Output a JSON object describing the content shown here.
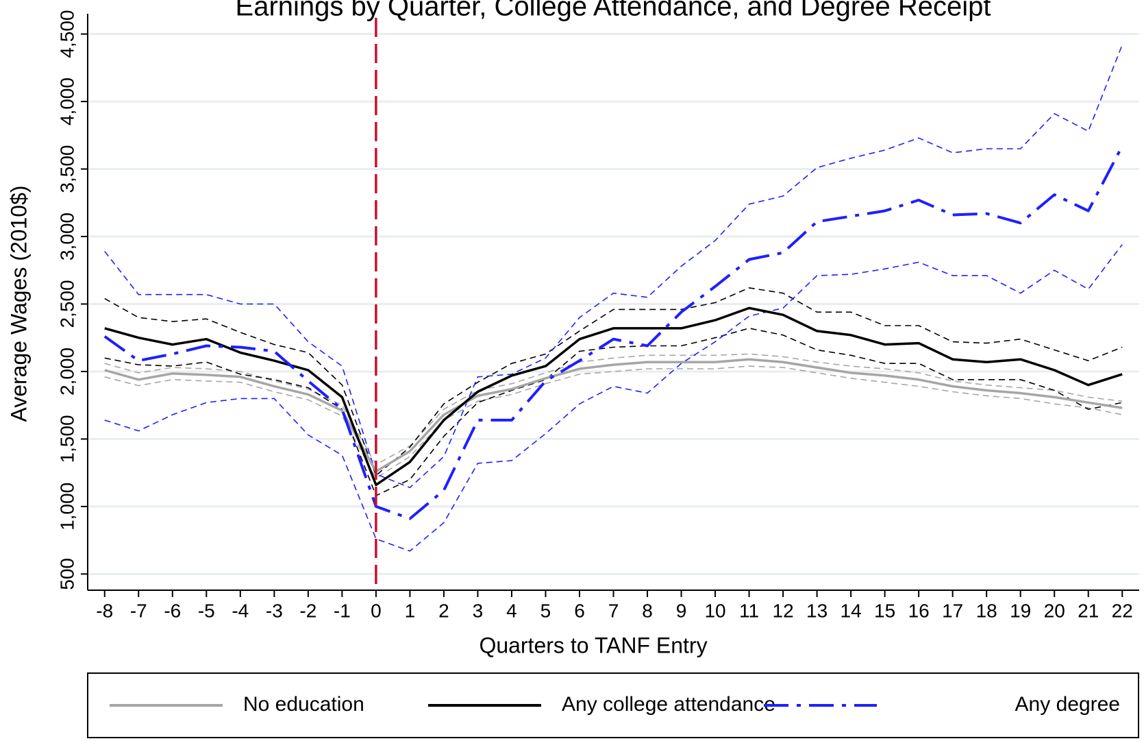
{
  "chart_data": {
    "type": "line",
    "title": "Earnings by Quarter, College Attendance, and Degree Receipt",
    "x_label": "Quarters to TANF Entry",
    "y_label": "Average Wages (2010$)",
    "x": [
      -8,
      -7,
      -6,
      -5,
      -4,
      -3,
      -2,
      -1,
      0,
      1,
      2,
      3,
      4,
      5,
      6,
      7,
      8,
      9,
      10,
      11,
      12,
      13,
      14,
      15,
      16,
      17,
      18,
      19,
      20,
      21,
      22
    ],
    "xlim": [
      -8.5,
      22.5
    ],
    "xticks": [
      -8,
      -7,
      -6,
      -5,
      -4,
      -3,
      -2,
      -1,
      0,
      1,
      2,
      3,
      4,
      5,
      6,
      7,
      8,
      9,
      10,
      11,
      12,
      13,
      14,
      15,
      16,
      17,
      18,
      19,
      20,
      21,
      22
    ],
    "ylim": [
      380,
      4620
    ],
    "yticks": [
      500,
      {
        "value": 1000,
        "label": "1,000"
      },
      {
        "value": 1500,
        "label": "1,500"
      },
      {
        "value": 2000,
        "label": "2,000"
      },
      {
        "value": 2500,
        "label": "2,500"
      },
      {
        "value": 3000,
        "label": "3,000"
      },
      {
        "value": 3500,
        "label": "3,500"
      },
      {
        "value": 4000,
        "label": "4,000"
      },
      {
        "value": 4500,
        "label": "4,500"
      }
    ],
    "grid": true,
    "vline": {
      "x": 0,
      "color": "#c8102e"
    },
    "legend": "bottom",
    "series": [
      {
        "name": "No education",
        "color": "#a6a6a6",
        "line_style": "solid",
        "values": [
          2010,
          1940,
          1985,
          1975,
          1960,
          1890,
          1830,
          1710,
          1260,
          1410,
          1680,
          1820,
          1870,
          1950,
          2020,
          2050,
          2070,
          2070,
          2070,
          2090,
          2070,
          2030,
          1990,
          1970,
          1940,
          1890,
          1860,
          1840,
          1810,
          1770,
          1730
        ],
        "ci_upper": [
          2060,
          1990,
          2030,
          2020,
          2000,
          1930,
          1870,
          1750,
          1310,
          1450,
          1720,
          1860,
          1910,
          1990,
          2070,
          2100,
          2120,
          2120,
          2120,
          2130,
          2110,
          2070,
          2040,
          2020,
          1990,
          1930,
          1900,
          1880,
          1860,
          1810,
          1780
        ],
        "ci_lower": [
          1960,
          1895,
          1940,
          1930,
          1920,
          1850,
          1790,
          1670,
          1210,
          1370,
          1640,
          1780,
          1830,
          1910,
          1980,
          2000,
          2020,
          2020,
          2020,
          2040,
          2030,
          1990,
          1950,
          1920,
          1890,
          1850,
          1820,
          1800,
          1760,
          1730,
          1680
        ]
      },
      {
        "name": "Any college attendance",
        "color": "#000000",
        "line_style": "solid",
        "values": [
          2320,
          2250,
          2200,
          2240,
          2140,
          2080,
          2010,
          1810,
          1160,
          1330,
          1640,
          1850,
          1970,
          2040,
          2240,
          2320,
          2320,
          2320,
          2380,
          2470,
          2420,
          2300,
          2270,
          2200,
          2210,
          2090,
          2070,
          2090,
          2010,
          1900,
          1980
        ],
        "ci_upper": [
          2540,
          2400,
          2370,
          2390,
          2290,
          2200,
          2140,
          1900,
          1230,
          1440,
          1760,
          1920,
          2060,
          2130,
          2300,
          2460,
          2460,
          2460,
          2510,
          2620,
          2580,
          2440,
          2440,
          2340,
          2340,
          2220,
          2210,
          2240,
          2160,
          2080,
          2180
        ],
        "ci_lower": [
          2100,
          2050,
          2040,
          2070,
          1980,
          1940,
          1880,
          1720,
          1080,
          1200,
          1520,
          1770,
          1860,
          1940,
          2150,
          2180,
          2190,
          2190,
          2250,
          2320,
          2270,
          2160,
          2120,
          2060,
          2060,
          1940,
          1940,
          1940,
          1860,
          1720,
          1770
        ]
      },
      {
        "name": "Any degree",
        "color": "#1f1fff",
        "line_style": "longdash-dot",
        "values": [
          2260,
          2080,
          2130,
          2190,
          2180,
          2150,
          1930,
          1720,
          1000,
          910,
          1120,
          1640,
          1640,
          1930,
          2080,
          2240,
          2190,
          2440,
          2630,
          2830,
          2880,
          3110,
          3150,
          3190,
          3270,
          3160,
          3170,
          3100,
          3310,
          3190,
          3670
        ],
        "ci_upper": [
          2890,
          2570,
          2570,
          2570,
          2500,
          2500,
          2220,
          2040,
          1240,
          1140,
          1370,
          1960,
          1980,
          2100,
          2400,
          2580,
          2550,
          2780,
          2970,
          3240,
          3300,
          3510,
          3580,
          3640,
          3730,
          3620,
          3650,
          3650,
          3910,
          3780,
          4420
        ],
        "ci_lower": [
          1640,
          1560,
          1680,
          1770,
          1800,
          1800,
          1530,
          1380,
          760,
          670,
          880,
          1320,
          1340,
          1540,
          1760,
          1890,
          1840,
          2060,
          2220,
          2410,
          2470,
          2710,
          2720,
          2760,
          2810,
          2710,
          2710,
          2580,
          2750,
          2610,
          2940
        ]
      }
    ]
  }
}
